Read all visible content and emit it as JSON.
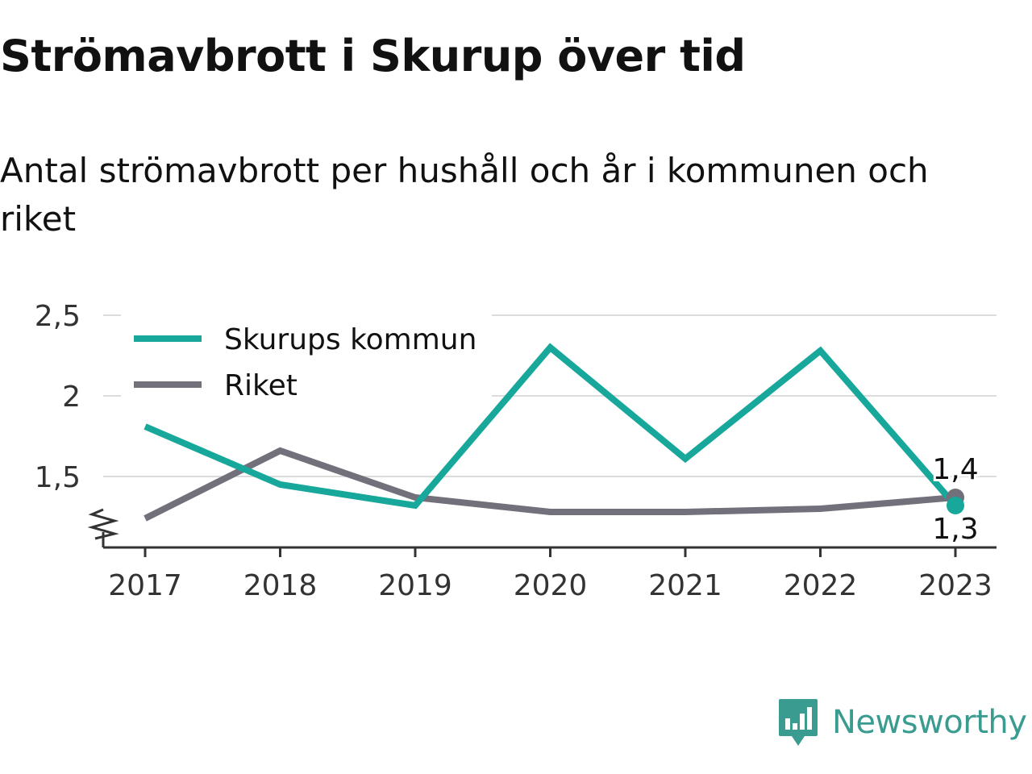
{
  "title": "Strömavbrott i Skurup över tid",
  "subtitle": "Antal strömavbrott per hushåll och år i kommunen och riket",
  "brand": {
    "name": "Newsworthy",
    "icon": "newsworthy-logo-icon",
    "color": "#3a9c90"
  },
  "chart_data": {
    "type": "line",
    "x": [
      "2017",
      "2018",
      "2019",
      "2020",
      "2021",
      "2022",
      "2023"
    ],
    "y_ticks": [
      "1,5",
      "2",
      "2,5"
    ],
    "y_tick_values": [
      1.5,
      2,
      2.5
    ],
    "ylim": [
      1.06,
      2.52
    ],
    "grid": true,
    "axis_break": true,
    "legend_position": "top-left",
    "series": [
      {
        "name": "Skurups kommun",
        "color": "#17a89b",
        "values": [
          1.81,
          1.45,
          1.32,
          2.3,
          1.61,
          2.28,
          1.32
        ],
        "end_label": "1,3"
      },
      {
        "name": "Riket",
        "color": "#72707a",
        "values": [
          1.24,
          1.66,
          1.37,
          1.28,
          1.28,
          1.3,
          1.37
        ],
        "end_label": "1,4"
      }
    ]
  }
}
